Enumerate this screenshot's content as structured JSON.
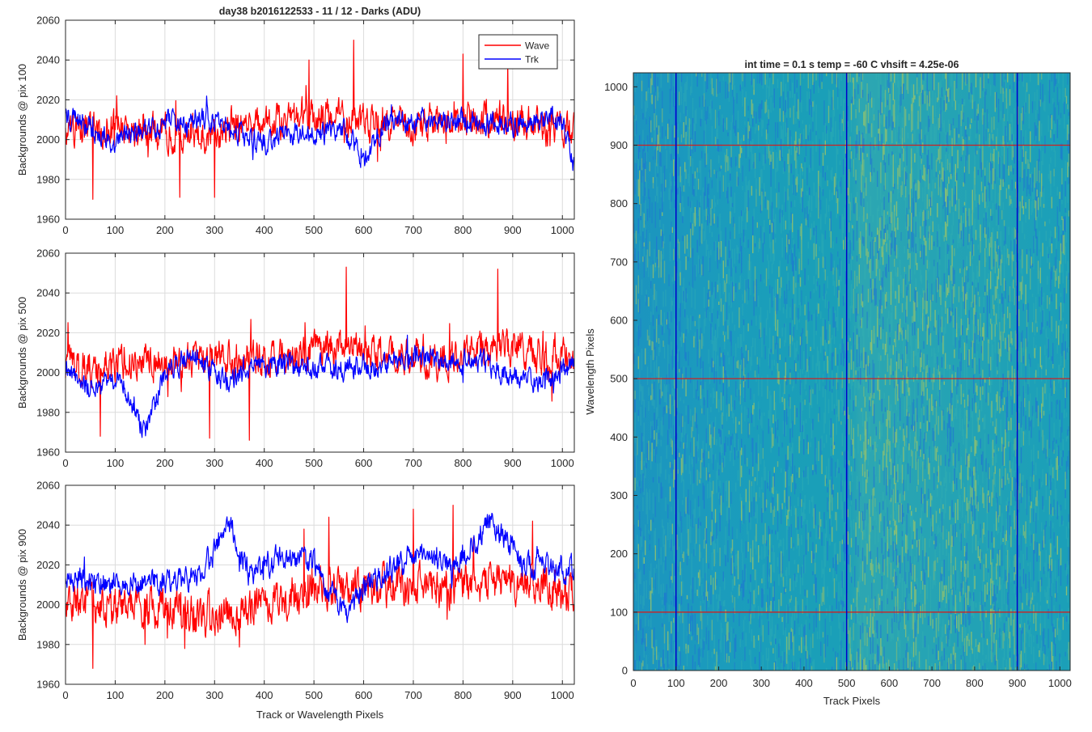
{
  "figure": {
    "colors": {
      "wave": "#ff0000",
      "trk": "#0000ff",
      "grid": "#dcdcdc",
      "axis": "#262626",
      "heatmap_base": "#1a9fb8",
      "heatmap_low": "#1f6fd6",
      "heatmap_high": "#a8c860"
    }
  },
  "chart_data": [
    {
      "type": "line",
      "title": "day38 b2016122533 - 11 / 12 - Darks (ADU)",
      "xlabel": "",
      "ylabel": "Backgrounds @ pix 100",
      "xlim": [
        0,
        1024
      ],
      "ylim": [
        1960,
        2060
      ],
      "xticks": [
        0,
        100,
        200,
        300,
        400,
        500,
        600,
        700,
        800,
        900,
        1000
      ],
      "yticks": [
        1960,
        1980,
        2000,
        2020,
        2040,
        2060
      ],
      "grid": true,
      "legend": {
        "position": "top-right",
        "entries": [
          "Wave",
          "Trk"
        ]
      },
      "series": [
        {
          "name": "Wave",
          "color": "#ff0000",
          "mean": 2005,
          "noise": 7,
          "drift": [
            [
              0,
              2004
            ],
            [
              100,
              2006
            ],
            [
              300,
              2003
            ],
            [
              480,
              2012
            ],
            [
              560,
              2010
            ],
            [
              700,
              2008
            ],
            [
              850,
              2011
            ],
            [
              1024,
              2005
            ]
          ],
          "spikes": [
            [
              55,
              1970
            ],
            [
              230,
              1971
            ],
            [
              300,
              1971
            ],
            [
              490,
              2040
            ],
            [
              580,
              2050
            ],
            [
              800,
              2043
            ],
            [
              890,
              2040
            ]
          ]
        },
        {
          "name": "Trk",
          "color": "#0000ff",
          "mean": 2005,
          "noise": 4.5,
          "drift": [
            [
              0,
              2012
            ],
            [
              60,
              2005
            ],
            [
              100,
              1998
            ],
            [
              150,
              2005
            ],
            [
              280,
              2012
            ],
            [
              330,
              2006
            ],
            [
              400,
              1998
            ],
            [
              460,
              2003
            ],
            [
              560,
              2005
            ],
            [
              600,
              1990
            ],
            [
              640,
              2008
            ],
            [
              720,
              2010
            ],
            [
              860,
              2008
            ],
            [
              1000,
              2010
            ],
            [
              1024,
              1985
            ]
          ]
        }
      ]
    },
    {
      "type": "line",
      "title": "",
      "xlabel": "",
      "ylabel": "Backgrounds @ pix 500",
      "xlim": [
        0,
        1024
      ],
      "ylim": [
        1960,
        2060
      ],
      "xticks": [
        0,
        100,
        200,
        300,
        400,
        500,
        600,
        700,
        800,
        900,
        1000
      ],
      "yticks": [
        1960,
        1980,
        2000,
        2020,
        2040,
        2060
      ],
      "grid": true,
      "series": [
        {
          "name": "Wave",
          "color": "#ff0000",
          "mean": 2006,
          "noise": 7,
          "drift": [
            [
              0,
              2004
            ],
            [
              200,
              2006
            ],
            [
              420,
              2008
            ],
            [
              560,
              2015
            ],
            [
              620,
              2010
            ],
            [
              760,
              2007
            ],
            [
              880,
              2014
            ],
            [
              1024,
              2006
            ]
          ],
          "spikes": [
            [
              70,
              1968
            ],
            [
              290,
              1967
            ],
            [
              370,
              1966
            ],
            [
              565,
              2053
            ],
            [
              870,
              2052
            ]
          ]
        },
        {
          "name": "Trk",
          "color": "#0000ff",
          "mean": 2003,
          "noise": 4.5,
          "drift": [
            [
              0,
              2003
            ],
            [
              60,
              1990
            ],
            [
              110,
              1998
            ],
            [
              160,
              1970
            ],
            [
              200,
              2000
            ],
            [
              260,
              2010
            ],
            [
              320,
              1995
            ],
            [
              380,
              2003
            ],
            [
              440,
              2005
            ],
            [
              560,
              2002
            ],
            [
              640,
              2005
            ],
            [
              700,
              2008
            ],
            [
              820,
              2006
            ],
            [
              950,
              1995
            ],
            [
              1024,
              2004
            ]
          ]
        }
      ]
    },
    {
      "type": "line",
      "title": "",
      "xlabel": "Track or Wavelength Pixels",
      "ylabel": "Backgrounds @ pix 900",
      "xlim": [
        0,
        1024
      ],
      "ylim": [
        1960,
        2060
      ],
      "xticks": [
        0,
        100,
        200,
        300,
        400,
        500,
        600,
        700,
        800,
        900,
        1000
      ],
      "yticks": [
        1960,
        1980,
        2000,
        2020,
        2040,
        2060
      ],
      "grid": true,
      "series": [
        {
          "name": "Wave",
          "color": "#ff0000",
          "mean": 2001,
          "noise": 8,
          "drift": [
            [
              0,
              2000
            ],
            [
              200,
              1998
            ],
            [
              300,
              1995
            ],
            [
              500,
              2007
            ],
            [
              620,
              2008
            ],
            [
              760,
              2009
            ],
            [
              900,
              2012
            ],
            [
              1024,
              2006
            ]
          ],
          "spikes": [
            [
              55,
              1968
            ],
            [
              160,
              1980
            ],
            [
              240,
              1978
            ],
            [
              480,
              2038
            ],
            [
              530,
              2044
            ],
            [
              700,
              2048
            ],
            [
              780,
              2050
            ],
            [
              940,
              2042
            ]
          ]
        },
        {
          "name": "Trk",
          "color": "#0000ff",
          "mean": 2013,
          "noise": 5,
          "drift": [
            [
              0,
              2014
            ],
            [
              100,
              2010
            ],
            [
              200,
              2012
            ],
            [
              260,
              2012
            ],
            [
              330,
              2038
            ],
            [
              370,
              2015
            ],
            [
              440,
              2025
            ],
            [
              500,
              2020
            ],
            [
              560,
              1995
            ],
            [
              600,
              2010
            ],
            [
              700,
              2025
            ],
            [
              780,
              2020
            ],
            [
              860,
              2042
            ],
            [
              920,
              2020
            ],
            [
              1024,
              2018
            ]
          ]
        }
      ]
    },
    {
      "type": "heatmap",
      "title": "int time = 0.1 s   temp = -60 C   vhsift = 4.25e-06",
      "xlabel": "Track Pixels",
      "ylabel": "Wavelength Pixels",
      "xlim": [
        0,
        1024
      ],
      "ylim": [
        0,
        1024
      ],
      "xticks": [
        0,
        100,
        200,
        300,
        400,
        500,
        600,
        700,
        800,
        900,
        1000
      ],
      "yticks": [
        0,
        100,
        200,
        300,
        400,
        500,
        600,
        700,
        800,
        900,
        1000
      ],
      "grid": false,
      "markers": {
        "vertical_lines": [
          100,
          500,
          900
        ],
        "horizontal_lines": [
          100,
          500,
          900
        ],
        "vertical_color": "#0000cc",
        "horizontal_color": "#cc2222"
      }
    }
  ]
}
